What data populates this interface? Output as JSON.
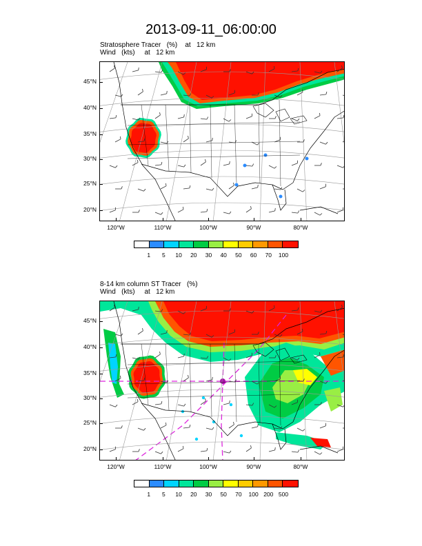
{
  "title": "2013-09-11_06:00:00",
  "panels": [
    {
      "id": "top",
      "line1": "Stratosphere Tracer   (%)    at   12 km",
      "line2": "Wind   (kts)     at   12 km",
      "colorbar": {
        "labels": [
          "1",
          "5",
          "10",
          "20",
          "30",
          "40",
          "50",
          "60",
          "70",
          "100"
        ],
        "colors": [
          "#ffffff",
          "#2b8cff",
          "#00d4ff",
          "#00e69a",
          "#00cc44",
          "#99ee44",
          "#ffff00",
          "#ffcc00",
          "#ff9900",
          "#ff5500",
          "#ff1100"
        ]
      }
    },
    {
      "id": "bottom",
      "line1": "8-14 km column ST Tracer   (%)",
      "line2": "Wind   (kts)     at   12 km",
      "colorbar": {
        "labels": [
          "1",
          "5",
          "10",
          "20",
          "30",
          "50",
          "70",
          "100",
          "200",
          "500"
        ],
        "colors": [
          "#ffffff",
          "#2b8cff",
          "#00d4ff",
          "#00e69a",
          "#00cc44",
          "#99ee44",
          "#ffff00",
          "#ffcc00",
          "#ff9900",
          "#ff5500",
          "#ff1100"
        ]
      }
    }
  ],
  "lat_labels": [
    "45°N",
    "40°N",
    "35°N",
    "30°N",
    "25°N",
    "20°N"
  ],
  "lon_labels": [
    "120°W",
    "110°W",
    "100°W",
    "90°W",
    "80°W"
  ]
}
